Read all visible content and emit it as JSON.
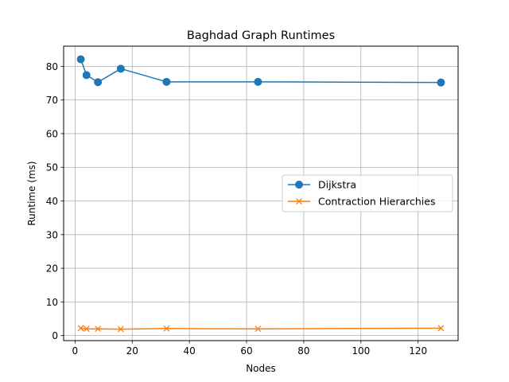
{
  "chart_data": {
    "type": "line",
    "title": "Baghdad Graph Runtimes",
    "xlabel": "Nodes",
    "ylabel": "Runtime (ms)",
    "xlim": [
      -4,
      134
    ],
    "ylim": [
      -1.5,
      86
    ],
    "xticks": [
      0,
      20,
      40,
      60,
      80,
      100,
      120
    ],
    "yticks": [
      0,
      10,
      20,
      30,
      40,
      50,
      60,
      70,
      80
    ],
    "grid": true,
    "legend_position": "center-right",
    "series": [
      {
        "name": "Dijkstra",
        "marker": "circle",
        "color": "#1f77b4",
        "x": [
          2,
          4,
          8,
          16,
          32,
          64,
          128
        ],
        "y": [
          82.1,
          77.4,
          75.3,
          79.3,
          75.4,
          75.4,
          75.2
        ]
      },
      {
        "name": "Contraction Hierarchies",
        "marker": "x",
        "color": "#ff7f0e",
        "x": [
          2,
          4,
          8,
          16,
          32,
          64,
          128
        ],
        "y": [
          2.2,
          2.0,
          2.0,
          1.9,
          2.1,
          2.0,
          2.2
        ]
      }
    ]
  }
}
